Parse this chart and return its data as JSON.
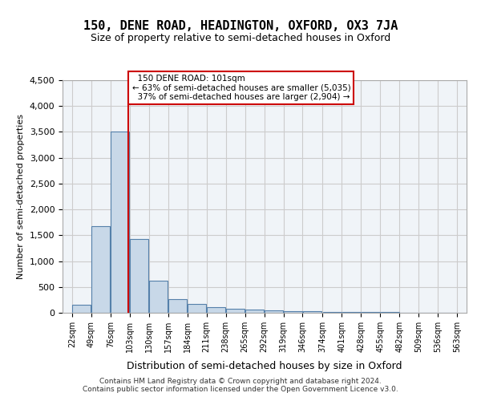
{
  "title": "150, DENE ROAD, HEADINGTON, OXFORD, OX3 7JA",
  "subtitle": "Size of property relative to semi-detached houses in Oxford",
  "xlabel": "Distribution of semi-detached houses by size in Oxford",
  "ylabel": "Number of semi-detached properties",
  "property_size": 101,
  "property_label": "150 DENE ROAD: 101sqm",
  "pct_smaller": 63,
  "count_smaller": 5035,
  "pct_larger": 37,
  "count_larger": 2904,
  "bar_color": "#c8d8e8",
  "bar_edge_color": "#5580aa",
  "vline_color": "#cc0000",
  "annotation_box_edge": "#cc0000",
  "grid_color": "#cccccc",
  "background_color": "#f0f4f8",
  "ylim": [
    0,
    4500
  ],
  "bin_edges": [
    22,
    49,
    76,
    103,
    130,
    157,
    184,
    211,
    238,
    265,
    292,
    319,
    346,
    374,
    401,
    428,
    455,
    482,
    509,
    536,
    563
  ],
  "bin_labels": [
    "22sqm",
    "49sqm",
    "76sqm",
    "103sqm",
    "130sqm",
    "157sqm",
    "184sqm",
    "211sqm",
    "238sqm",
    "265sqm",
    "292sqm",
    "319sqm",
    "346sqm",
    "374sqm",
    "401sqm",
    "428sqm",
    "455sqm",
    "482sqm",
    "509sqm",
    "536sqm",
    "563sqm"
  ],
  "counts": [
    150,
    1680,
    3500,
    1430,
    620,
    270,
    175,
    105,
    70,
    55,
    45,
    35,
    28,
    20,
    15,
    10,
    8,
    6,
    5,
    4
  ],
  "footer": "Contains HM Land Registry data © Crown copyright and database right 2024.\nContains public sector information licensed under the Open Government Licence v3.0."
}
